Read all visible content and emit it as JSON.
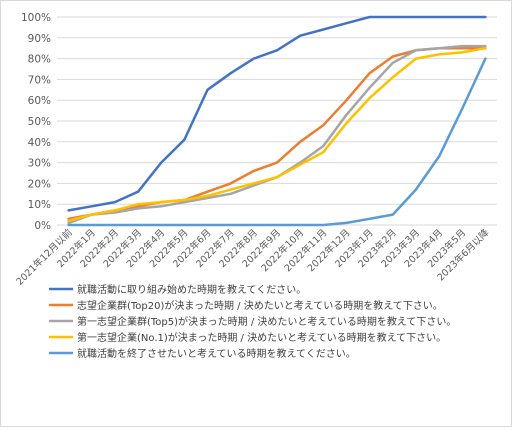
{
  "chart_data": {
    "type": "line",
    "categories": [
      "2021年12月以前",
      "2022年1月",
      "2022年2月",
      "2022年3月",
      "2022年4月",
      "2022年5月",
      "2022年6月",
      "2022年7月",
      "2022年8月",
      "2022年9月",
      "2022年10月",
      "2022年11月",
      "2022年12月",
      "2023年1月",
      "2023年2月",
      "2023年3月",
      "2023年4月",
      "2023年5月",
      "2023年6月以降"
    ],
    "yticks": [
      "0%",
      "10%",
      "20%",
      "30%",
      "40%",
      "50%",
      "60%",
      "70%",
      "80%",
      "90%",
      "100%"
    ],
    "ylim": [
      0,
      100
    ],
    "grid": true,
    "legend_position": "bottom",
    "series": [
      {
        "name": "就職活動に取り組み始めた時期を教えてください。",
        "color": "#4472C4",
        "values": [
          7,
          9,
          11,
          16,
          30,
          41,
          65,
          73,
          80,
          84,
          91,
          94,
          97,
          100,
          100,
          100,
          100,
          100,
          100
        ]
      },
      {
        "name": "志望企業群(Top20)が決まった時期 / 決めたいと考えている時期を教えて下さい。",
        "color": "#ED7D31",
        "values": [
          3,
          5,
          7,
          9,
          11,
          12,
          16,
          20,
          26,
          30,
          40,
          48,
          60,
          73,
          81,
          84,
          85,
          85,
          85
        ]
      },
      {
        "name": "第一志望企業群(Top5)が決まった時期 / 決めたいと考えている時期を教えて下さい。",
        "color": "#A5A5A5",
        "values": [
          1,
          5,
          6,
          8,
          9,
          11,
          13,
          15,
          19,
          23,
          30,
          38,
          53,
          66,
          78,
          84,
          85,
          86,
          86
        ]
      },
      {
        "name": "第一志望企業(No.1)が決まった時期 / 決めたいと考えている時期を教えて下さい。",
        "color": "#FFC000",
        "values": [
          2,
          5,
          7,
          10,
          11,
          12,
          14,
          17,
          20,
          23,
          29,
          35,
          49,
          61,
          71,
          80,
          82,
          83,
          85
        ]
      },
      {
        "name": "就職活動を終了させたいと考えている時期を教えてください。",
        "color": "#5B9BD5",
        "values": [
          0,
          0,
          0,
          0,
          0,
          0,
          0,
          0,
          0,
          0,
          0,
          0,
          1,
          3,
          5,
          17,
          33,
          56,
          80
        ]
      }
    ]
  }
}
